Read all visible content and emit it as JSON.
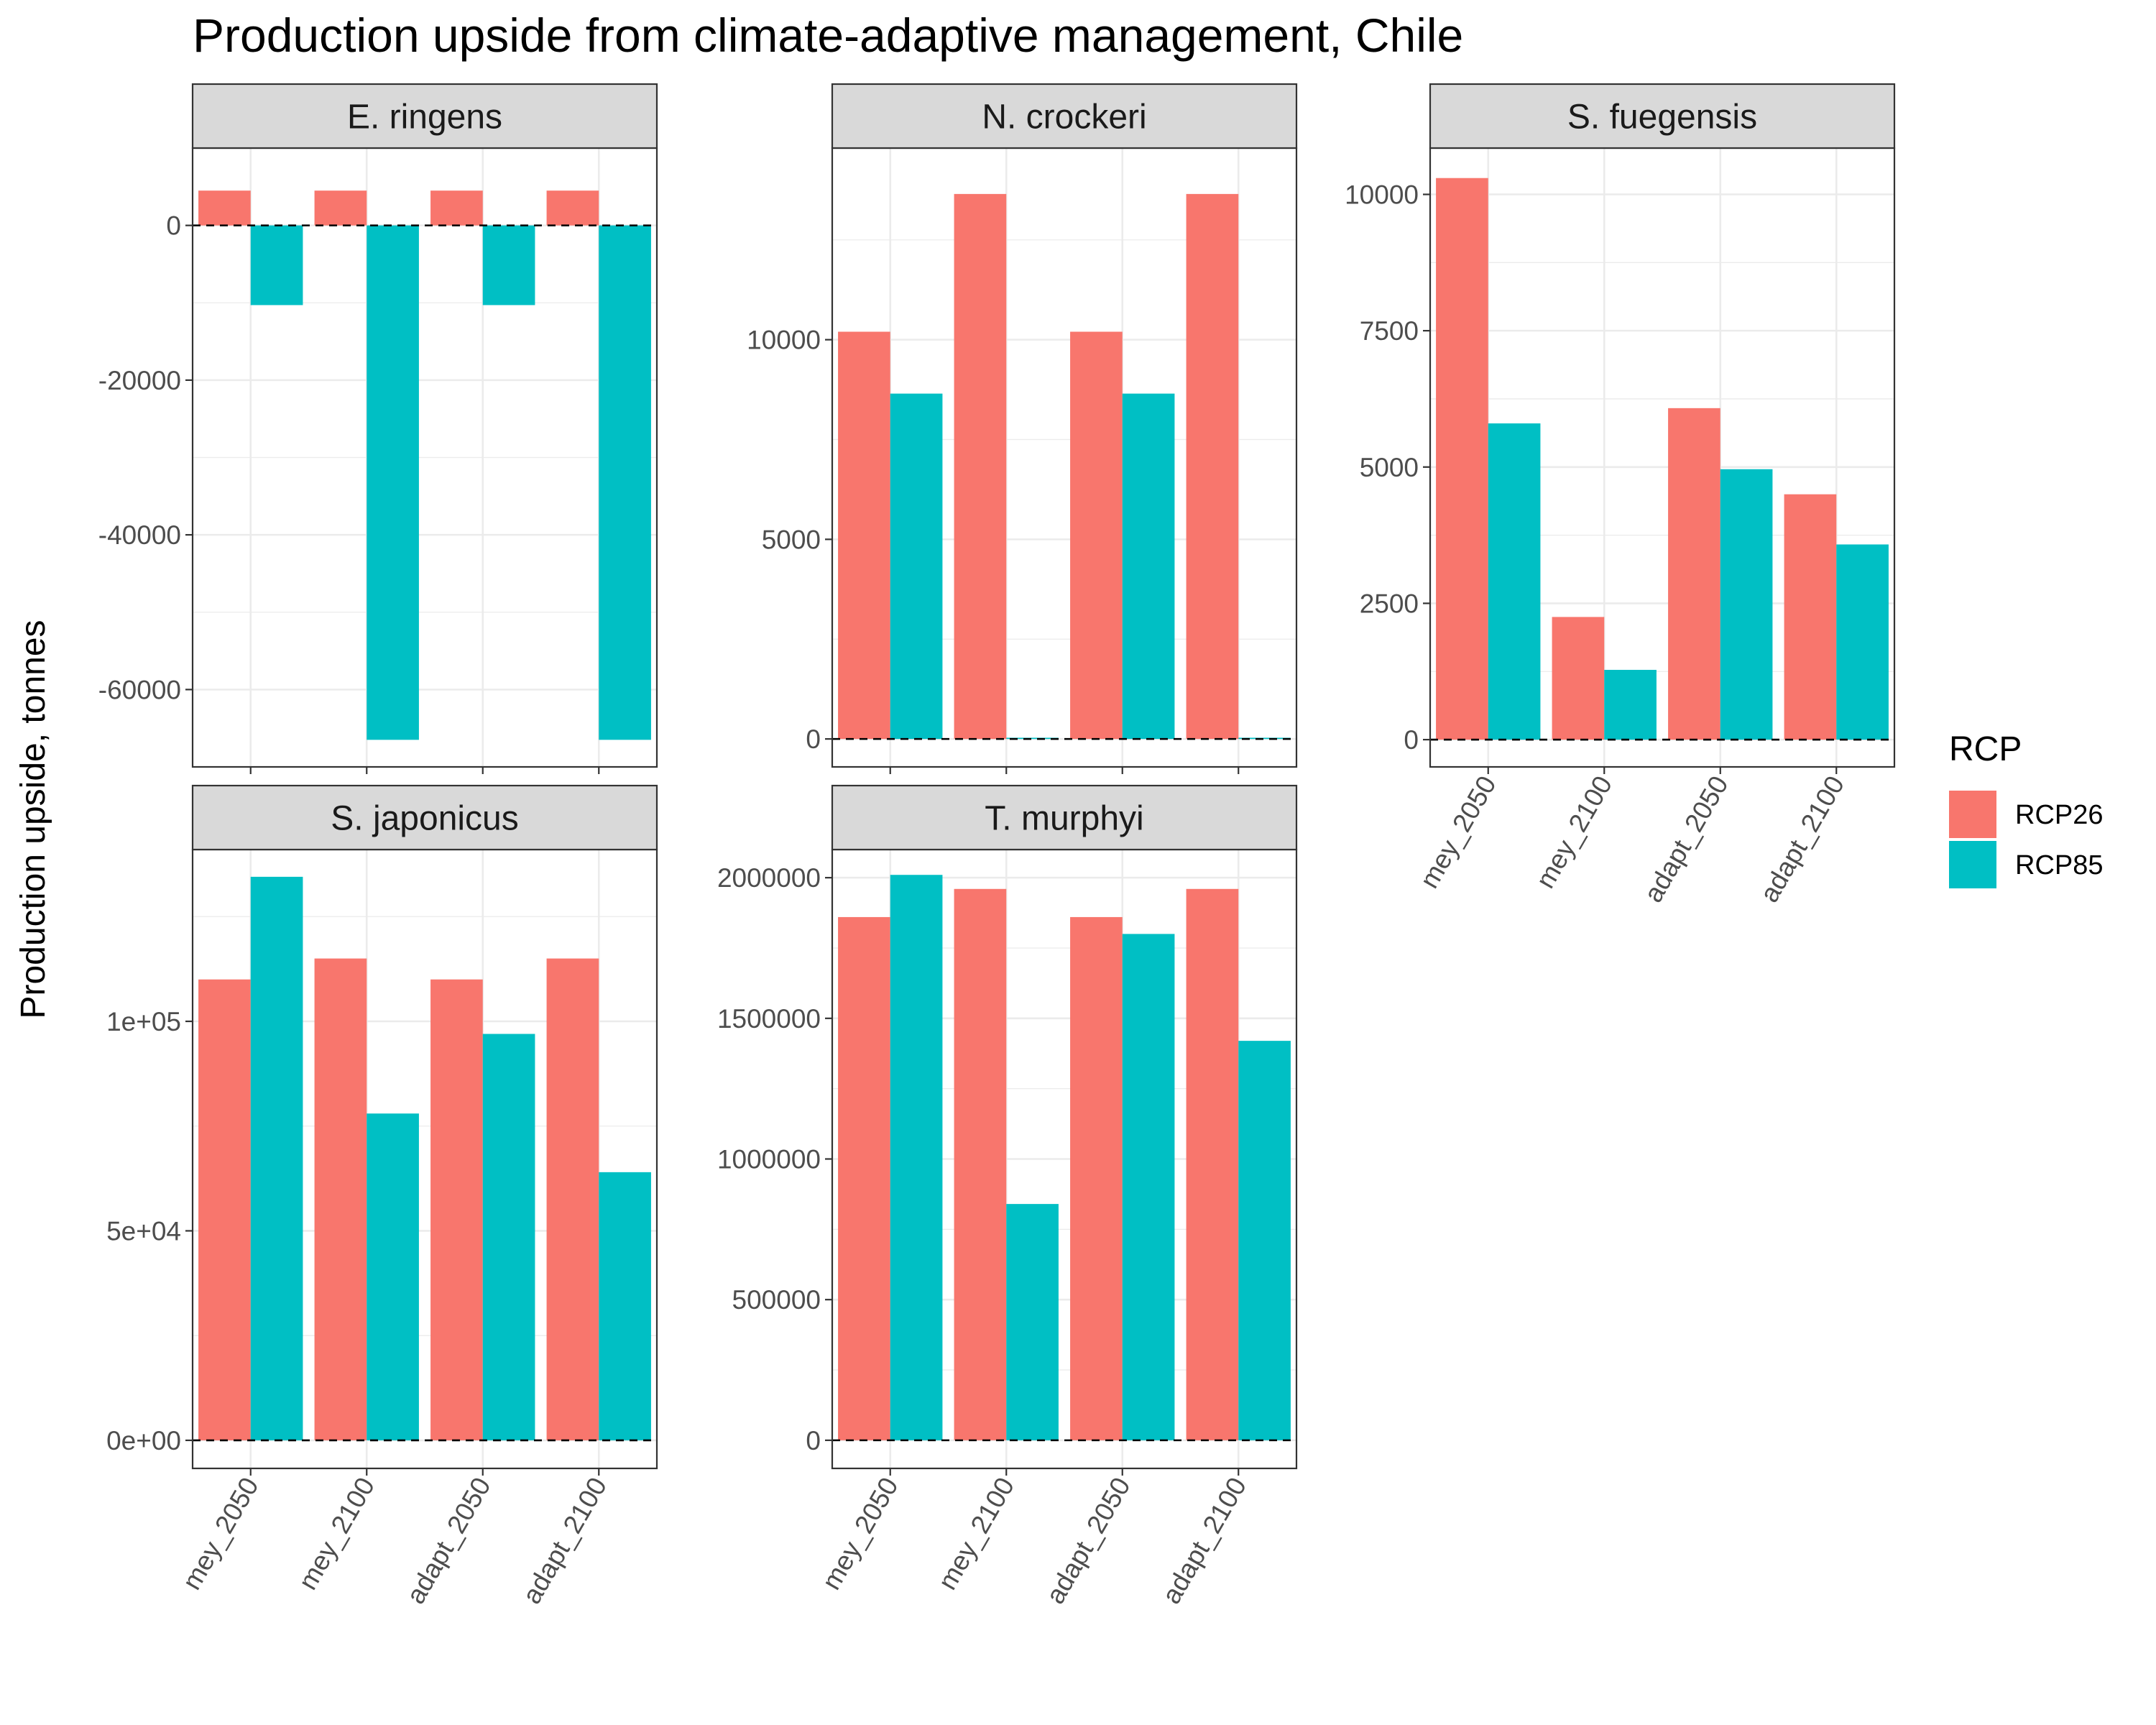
{
  "chart_data": {
    "type": "bar",
    "title": "Production upside from climate-adaptive management, Chile",
    "ylabel": "Production upside, tonnes",
    "xlabel": "",
    "categories": [
      "mey_2050",
      "mey_2100",
      "adapt_2050",
      "adapt_2100"
    ],
    "legend": {
      "title": "RCP",
      "placement": "right",
      "entries": [
        {
          "name": "RCP26",
          "color": "#F8766D"
        },
        {
          "name": "RCP85",
          "color": "#00BFC4"
        }
      ]
    },
    "colors": {
      "RCP26": "#F8766D",
      "RCP85": "#00BFC4",
      "strip_bg": "#d9d9d9",
      "grid": "#ebebeb"
    },
    "reference_line": {
      "y": 0,
      "style": "dashed"
    },
    "facets": [
      {
        "name": "E. ringens",
        "ylim": [
          -70000,
          10000
        ],
        "yticks": [
          0,
          -20000,
          -40000,
          -60000
        ],
        "ytick_labels": [
          "0",
          "-20000",
          "-40000",
          "-60000"
        ],
        "series": [
          {
            "name": "RCP26",
            "values": [
              4500,
              4500,
              4500,
              4500
            ]
          },
          {
            "name": "RCP85",
            "values": [
              -10300,
              -66500,
              -10300,
              -66500
            ]
          }
        ]
      },
      {
        "name": "N. crockeri",
        "ylim": [
          -700,
          14800
        ],
        "yticks": [
          0,
          5000,
          10000
        ],
        "ytick_labels": [
          "0",
          "5000",
          "10000"
        ],
        "series": [
          {
            "name": "RCP26",
            "values": [
              10200,
              13650,
              10200,
              13650
            ]
          },
          {
            "name": "RCP85",
            "values": [
              8650,
              30,
              8650,
              30
            ]
          }
        ]
      },
      {
        "name": "S. fuegensis",
        "ylim": [
          -500,
          10850
        ],
        "yticks": [
          0,
          2500,
          5000,
          7500,
          10000
        ],
        "ytick_labels": [
          "0",
          "2500",
          "5000",
          "7500",
          "10000"
        ],
        "series": [
          {
            "name": "RCP26",
            "values": [
              10300,
              2250,
              6080,
              4500
            ]
          },
          {
            "name": "RCP85",
            "values": [
              5800,
              1280,
              4960,
              3580
            ]
          }
        ]
      },
      {
        "name": "S. japonicus",
        "ylim": [
          -6700,
          141000
        ],
        "yticks": [
          0,
          50000,
          100000
        ],
        "ytick_labels": [
          "0e+00",
          "5e+04",
          "1e+05"
        ],
        "series": [
          {
            "name": "RCP26",
            "values": [
              110000,
              115000,
              110000,
              115000
            ]
          },
          {
            "name": "RCP85",
            "values": [
              134500,
              78000,
              97000,
              64000
            ]
          }
        ]
      },
      {
        "name": "T. murphyi",
        "ylim": [
          -100000,
          2100000
        ],
        "yticks": [
          0,
          500000,
          1000000,
          1500000,
          2000000
        ],
        "ytick_labels": [
          "0",
          "500000",
          "1000000",
          "1500000",
          "2000000"
        ],
        "series": [
          {
            "name": "RCP26",
            "values": [
              1860000,
              1960000,
              1860000,
              1960000
            ]
          },
          {
            "name": "RCP85",
            "values": [
              2010000,
              840000,
              1800000,
              1420000
            ]
          }
        ]
      }
    ]
  }
}
